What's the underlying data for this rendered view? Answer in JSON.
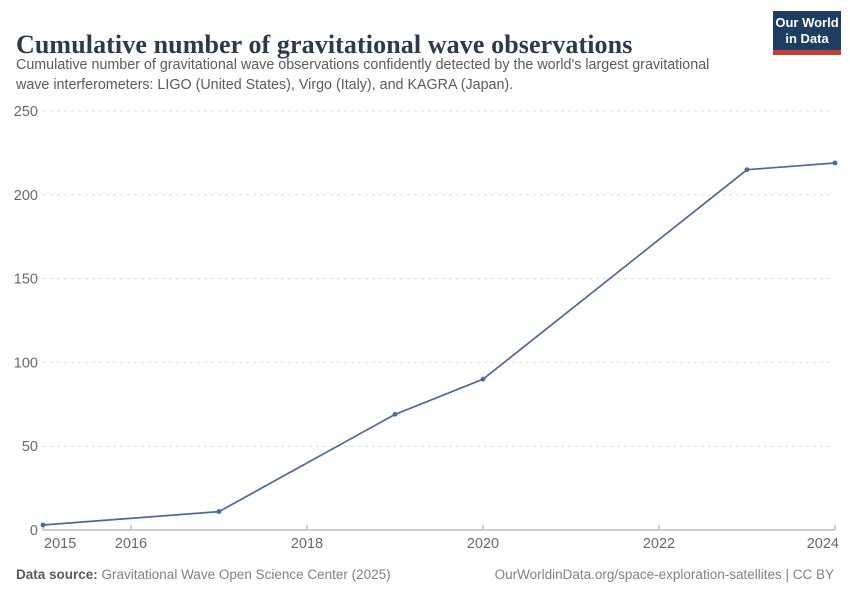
{
  "header": {
    "title": "Cumulative number of gravitational wave observations",
    "subtitle_line1": "Cumulative number of gravitational wave observations confidently detected by the world's largest gravitational",
    "subtitle_line2": "wave interferometers: LIGO (United States), Virgo (Italy), and KAGRA (Japan).",
    "logo": {
      "line1": "Our World",
      "line2": "in Data"
    }
  },
  "chart_data": {
    "type": "line",
    "title": "Cumulative number of gravitational wave observations",
    "x": [
      2015,
      2017,
      2019,
      2020,
      2023,
      2024
    ],
    "values": [
      3,
      11,
      69,
      90,
      215,
      219
    ],
    "xlabel": "",
    "ylabel": "",
    "xlim": [
      2015,
      2024
    ],
    "ylim": [
      0,
      250
    ],
    "x_ticks": [
      2015,
      2016,
      2018,
      2020,
      2022,
      2024
    ],
    "y_ticks": [
      0,
      50,
      100,
      150,
      200,
      250
    ],
    "grid": "horizontal-dashed",
    "legend": "none",
    "line_color": "#4c6a9c"
  },
  "footer": {
    "source_label": "Data source:",
    "source_text": " Gravitational Wave Open Science Center (2025)",
    "credit": "OurWorldinData.org/space-exploration-satellites | CC BY"
  },
  "colors": {
    "line": "#4c6a9c",
    "grid": "#dcdcdc",
    "axis": "#999999",
    "tick_label": "#696969",
    "logo_navy": "#1d3d63",
    "logo_red": "#c43d33"
  }
}
